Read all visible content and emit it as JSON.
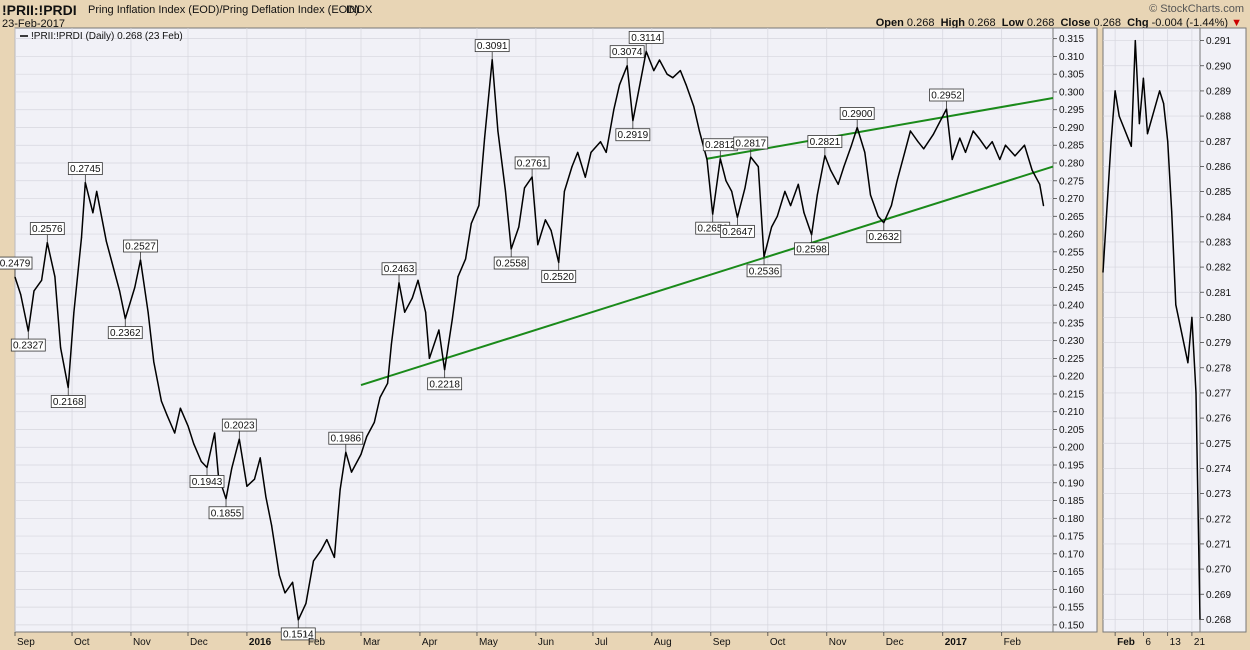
{
  "header": {
    "ticker": "!PRII:!PRDI",
    "description": "Pring Inflation Index (EOD)/Pring Deflation Index (EOD)",
    "exchange": "INDX",
    "date": "23-Feb-2017",
    "brand": "© StockCharts.com",
    "open_label": "Open",
    "open": "0.268",
    "high_label": "High",
    "high": "0.268",
    "low_label": "Low",
    "low": "0.268",
    "close_label": "Close",
    "close": "0.268",
    "chg_label": "Chg",
    "chg": "-0.004 (-1.44%)",
    "chg_arrow": "▼"
  },
  "legend": {
    "text": "!PRII:!PRDI (Daily) 0.268 (23 Feb)"
  },
  "colors": {
    "background": "#e8d5b5",
    "plot": "#f1f1f7",
    "line": "#000000",
    "trend": "#1a8a1a",
    "grid": "#d6d6de"
  },
  "chart_data": [
    {
      "type": "line",
      "series": [
        {
          "name": "!PRII:!PRDI (Daily)",
          "points": [
            [
              "2015-09-01",
              0.2479
            ],
            [
              "2015-09-04",
              0.243
            ],
            [
              "2015-09-08",
              0.2327
            ],
            [
              "2015-09-11",
              0.244
            ],
            [
              "2015-09-15",
              0.247
            ],
            [
              "2015-09-18",
              0.2576
            ],
            [
              "2015-09-22",
              0.248
            ],
            [
              "2015-09-25",
              0.228
            ],
            [
              "2015-09-29",
              0.2168
            ],
            [
              "2015-10-02",
              0.238
            ],
            [
              "2015-10-06",
              0.259
            ],
            [
              "2015-10-08",
              0.2745
            ],
            [
              "2015-10-12",
              0.266
            ],
            [
              "2015-10-14",
              0.272
            ],
            [
              "2015-10-19",
              0.258
            ],
            [
              "2015-10-22",
              0.252
            ],
            [
              "2015-10-26",
              0.244
            ],
            [
              "2015-10-29",
              0.2362
            ],
            [
              "2015-11-03",
              0.245
            ],
            [
              "2015-11-06",
              0.2527
            ],
            [
              "2015-11-10",
              0.238
            ],
            [
              "2015-11-13",
              0.224
            ],
            [
              "2015-11-17",
              0.213
            ],
            [
              "2015-11-20",
              0.209
            ],
            [
              "2015-11-24",
              0.204
            ],
            [
              "2015-11-27",
              0.211
            ],
            [
              "2015-12-01",
              0.206
            ],
            [
              "2015-12-04",
              0.201
            ],
            [
              "2015-12-08",
              0.196
            ],
            [
              "2015-12-11",
              0.1943
            ],
            [
              "2015-12-15",
              0.204
            ],
            [
              "2015-12-17",
              0.192
            ],
            [
              "2015-12-21",
              0.1855
            ],
            [
              "2015-12-24",
              0.194
            ],
            [
              "2015-12-28",
              0.2023
            ],
            [
              "2016-01-01",
              0.189
            ],
            [
              "2016-01-05",
              0.191
            ],
            [
              "2016-01-08",
              0.197
            ],
            [
              "2016-01-11",
              0.186
            ],
            [
              "2016-01-14",
              0.178
            ],
            [
              "2016-01-18",
              0.164
            ],
            [
              "2016-01-21",
              0.159
            ],
            [
              "2016-01-25",
              0.162
            ],
            [
              "2016-01-28",
              0.1514
            ],
            [
              "2016-02-01",
              0.156
            ],
            [
              "2016-02-05",
              0.168
            ],
            [
              "2016-02-09",
              0.171
            ],
            [
              "2016-02-12",
              0.174
            ],
            [
              "2016-02-16",
              0.169
            ],
            [
              "2016-02-19",
              0.188
            ],
            [
              "2016-02-22",
              0.1986
            ],
            [
              "2016-02-25",
              0.193
            ],
            [
              "2016-03-01",
              0.198
            ],
            [
              "2016-03-04",
              0.203
            ],
            [
              "2016-03-08",
              0.207
            ],
            [
              "2016-03-11",
              0.214
            ],
            [
              "2016-03-15",
              0.218
            ],
            [
              "2016-03-17",
              0.229
            ],
            [
              "2016-03-21",
              0.2463
            ],
            [
              "2016-03-24",
              0.238
            ],
            [
              "2016-03-28",
              0.242
            ],
            [
              "2016-03-31",
              0.247
            ],
            [
              "2016-04-04",
              0.238
            ],
            [
              "2016-04-06",
              0.225
            ],
            [
              "2016-04-11",
              0.233
            ],
            [
              "2016-04-14",
              0.2218
            ],
            [
              "2016-04-18",
              0.236
            ],
            [
              "2016-04-21",
              0.248
            ],
            [
              "2016-04-25",
              0.253
            ],
            [
              "2016-04-28",
              0.263
            ],
            [
              "2016-05-02",
              0.268
            ],
            [
              "2016-05-05",
              0.287
            ],
            [
              "2016-05-09",
              0.3091
            ],
            [
              "2016-05-12",
              0.289
            ],
            [
              "2016-05-16",
              0.272
            ],
            [
              "2016-05-19",
              0.2558
            ],
            [
              "2016-05-23",
              0.262
            ],
            [
              "2016-05-26",
              0.273
            ],
            [
              "2016-05-30",
              0.2761
            ],
            [
              "2016-06-02",
              0.257
            ],
            [
              "2016-06-06",
              0.264
            ],
            [
              "2016-06-09",
              0.261
            ],
            [
              "2016-06-13",
              0.252
            ],
            [
              "2016-06-16",
              0.272
            ],
            [
              "2016-06-20",
              0.279
            ],
            [
              "2016-06-23",
              0.283
            ],
            [
              "2016-06-27",
              0.276
            ],
            [
              "2016-06-30",
              0.283
            ],
            [
              "2016-07-05",
              0.286
            ],
            [
              "2016-07-08",
              0.283
            ],
            [
              "2016-07-12",
              0.295
            ],
            [
              "2016-07-15",
              0.302
            ],
            [
              "2016-07-19",
              0.3074
            ],
            [
              "2016-07-22",
              0.2919
            ],
            [
              "2016-07-26",
              0.303
            ],
            [
              "2016-07-29",
              0.3114
            ],
            [
              "2016-08-02",
              0.306
            ],
            [
              "2016-08-05",
              0.309
            ],
            [
              "2016-08-09",
              0.305
            ],
            [
              "2016-08-12",
              0.304
            ],
            [
              "2016-08-16",
              0.306
            ],
            [
              "2016-08-19",
              0.302
            ],
            [
              "2016-08-23",
              0.296
            ],
            [
              "2016-08-26",
              0.289
            ],
            [
              "2016-08-30",
              0.281
            ],
            [
              "2016-09-02",
              0.2656
            ],
            [
              "2016-09-06",
              0.2812
            ],
            [
              "2016-09-09",
              0.275
            ],
            [
              "2016-09-12",
              0.272
            ],
            [
              "2016-09-15",
              0.2647
            ],
            [
              "2016-09-19",
              0.273
            ],
            [
              "2016-09-22",
              0.2817
            ],
            [
              "2016-09-26",
              0.279
            ],
            [
              "2016-09-29",
              0.2536
            ],
            [
              "2016-10-03",
              0.262
            ],
            [
              "2016-10-06",
              0.265
            ],
            [
              "2016-10-10",
              0.272
            ],
            [
              "2016-10-13",
              0.268
            ],
            [
              "2016-10-17",
              0.274
            ],
            [
              "2016-10-20",
              0.266
            ],
            [
              "2016-10-24",
              0.2598
            ],
            [
              "2016-10-27",
              0.271
            ],
            [
              "2016-10-31",
              0.2821
            ],
            [
              "2016-11-03",
              0.278
            ],
            [
              "2016-11-07",
              0.274
            ],
            [
              "2016-11-10",
              0.279
            ],
            [
              "2016-11-14",
              0.285
            ],
            [
              "2016-11-17",
              0.29
            ],
            [
              "2016-11-21",
              0.283
            ],
            [
              "2016-11-24",
              0.271
            ],
            [
              "2016-11-28",
              0.265
            ],
            [
              "2016-12-01",
              0.2632
            ],
            [
              "2016-12-05",
              0.268
            ],
            [
              "2016-12-08",
              0.275
            ],
            [
              "2016-12-12",
              0.283
            ],
            [
              "2016-12-15",
              0.289
            ],
            [
              "2016-12-19",
              0.286
            ],
            [
              "2016-12-22",
              0.284
            ],
            [
              "2016-12-27",
              0.288
            ],
            [
              "2017-01-03",
              0.2952
            ],
            [
              "2017-01-06",
              0.281
            ],
            [
              "2017-01-10",
              0.287
            ],
            [
              "2017-01-13",
              0.283
            ],
            [
              "2017-01-17",
              0.289
            ],
            [
              "2017-01-20",
              0.287
            ],
            [
              "2017-01-24",
              0.284
            ],
            [
              "2017-01-27",
              0.286
            ],
            [
              "2017-01-31",
              0.281
            ],
            [
              "2017-02-03",
              0.285
            ],
            [
              "2017-02-08",
              0.282
            ],
            [
              "2017-02-13",
              0.285
            ],
            [
              "2017-02-17",
              0.278
            ],
            [
              "2017-02-21",
              0.274
            ],
            [
              "2017-02-23",
              0.268
            ]
          ]
        }
      ],
      "annotations": [
        [
          "2015-09-01",
          0.2479
        ],
        [
          "2015-09-08",
          0.2327
        ],
        [
          "2015-09-18",
          0.2576
        ],
        [
          "2015-09-29",
          0.2168
        ],
        [
          "2015-10-08",
          0.2745
        ],
        [
          "2015-10-29",
          0.2362
        ],
        [
          "2015-11-06",
          0.2527
        ],
        [
          "2015-12-11",
          0.1943
        ],
        [
          "2015-12-21",
          0.1855
        ],
        [
          "2015-12-28",
          0.2023
        ],
        [
          "2016-01-28",
          0.1514
        ],
        [
          "2016-02-22",
          0.1986
        ],
        [
          "2016-03-21",
          0.2463
        ],
        [
          "2016-04-14",
          0.2218
        ],
        [
          "2016-05-09",
          0.3091
        ],
        [
          "2016-05-19",
          0.2558
        ],
        [
          "2016-05-30",
          0.2761
        ],
        [
          "2016-06-13",
          0.252
        ],
        [
          "2016-07-19",
          0.3074
        ],
        [
          "2016-07-22",
          0.2919
        ],
        [
          "2016-07-29",
          0.3114
        ],
        [
          "2016-09-02",
          0.2656
        ],
        [
          "2016-09-06",
          0.2812
        ],
        [
          "2016-09-15",
          0.2647
        ],
        [
          "2016-09-22",
          0.2817
        ],
        [
          "2016-09-29",
          0.2536
        ],
        [
          "2016-10-24",
          0.2598
        ],
        [
          "2016-10-31",
          0.2821
        ],
        [
          "2016-11-17",
          0.29
        ],
        [
          "2016-12-01",
          0.2632
        ],
        [
          "2017-01-03",
          0.2952
        ]
      ],
      "trendlines": [
        {
          "from": [
            "2016-03-01",
            0.2175
          ],
          "to": [
            "2017-02-28",
            0.279
          ]
        },
        {
          "from": [
            "2016-08-30",
            0.2812
          ],
          "to": [
            "2017-02-28",
            0.2983
          ]
        }
      ],
      "xlim": [
        "2015-09-01",
        "2017-02-28"
      ],
      "ylim": [
        0.148,
        0.318
      ],
      "ytick_step": 0.005,
      "xticks": [
        [
          "2015-09-01",
          "Sep"
        ],
        [
          "2015-10-01",
          "Oct"
        ],
        [
          "2015-11-01",
          "Nov"
        ],
        [
          "2015-12-01",
          "Dec"
        ],
        [
          "2016-01-01",
          "2016"
        ],
        [
          "2016-02-01",
          "Feb"
        ],
        [
          "2016-03-01",
          "Mar"
        ],
        [
          "2016-04-01",
          "Apr"
        ],
        [
          "2016-05-01",
          "May"
        ],
        [
          "2016-06-01",
          "Jun"
        ],
        [
          "2016-07-01",
          "Jul"
        ],
        [
          "2016-08-01",
          "Aug"
        ],
        [
          "2016-09-01",
          "Sep"
        ],
        [
          "2016-10-01",
          "Oct"
        ],
        [
          "2016-11-01",
          "Nov"
        ],
        [
          "2016-12-01",
          "Dec"
        ],
        [
          "2017-01-01",
          "2017"
        ],
        [
          "2017-02-01",
          "Feb"
        ]
      ],
      "bold_xticks": [
        "2016",
        "2017"
      ],
      "grid": true
    },
    {
      "type": "line",
      "series": [
        {
          "name": "!PRII:!PRDI (Daily) zoom",
          "points": [
            [
              "2017-01-23",
              0.2818
            ],
            [
              "2017-01-25",
              0.287
            ],
            [
              "2017-01-26",
              0.289
            ],
            [
              "2017-01-27",
              0.288
            ],
            [
              "2017-01-30",
              0.2868
            ],
            [
              "2017-01-31",
              0.291
            ],
            [
              "2017-02-01",
              0.2877
            ],
            [
              "2017-02-02",
              0.2895
            ],
            [
              "2017-02-03",
              0.2873
            ],
            [
              "2017-02-06",
              0.289
            ],
            [
              "2017-02-07",
              0.2885
            ],
            [
              "2017-02-08",
              0.287
            ],
            [
              "2017-02-09",
              0.2842
            ],
            [
              "2017-02-10",
              0.2805
            ],
            [
              "2017-02-13",
              0.2782
            ],
            [
              "2017-02-14",
              0.28
            ],
            [
              "2017-02-15",
              0.277
            ],
            [
              "2017-02-16",
              0.268
            ]
          ]
        }
      ],
      "xlim": [
        "2017-01-23",
        "2017-02-16"
      ],
      "ylim": [
        0.2675,
        0.2915
      ],
      "ytick_step": 0.001,
      "xticks": [
        [
          "2017-01-26",
          "Feb"
        ],
        [
          "2017-02-02",
          "6"
        ],
        [
          "2017-02-08",
          "13"
        ],
        [
          "2017-02-14",
          "21"
        ]
      ],
      "bold_xticks": [
        "Feb"
      ],
      "grid": true
    }
  ]
}
